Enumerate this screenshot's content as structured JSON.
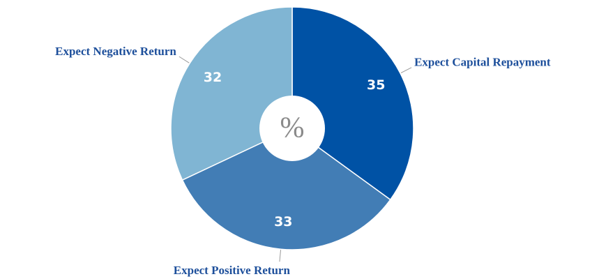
{
  "chart_data": {
    "type": "pie",
    "categories": [
      "Expect Capital Repayment",
      "Expect Positive Return",
      "Expect Negative Return"
    ],
    "values": [
      35,
      33,
      32
    ],
    "colors": [
      "#0052a5",
      "#427db5",
      "#80b5d3"
    ],
    "center_label": "%"
  }
}
